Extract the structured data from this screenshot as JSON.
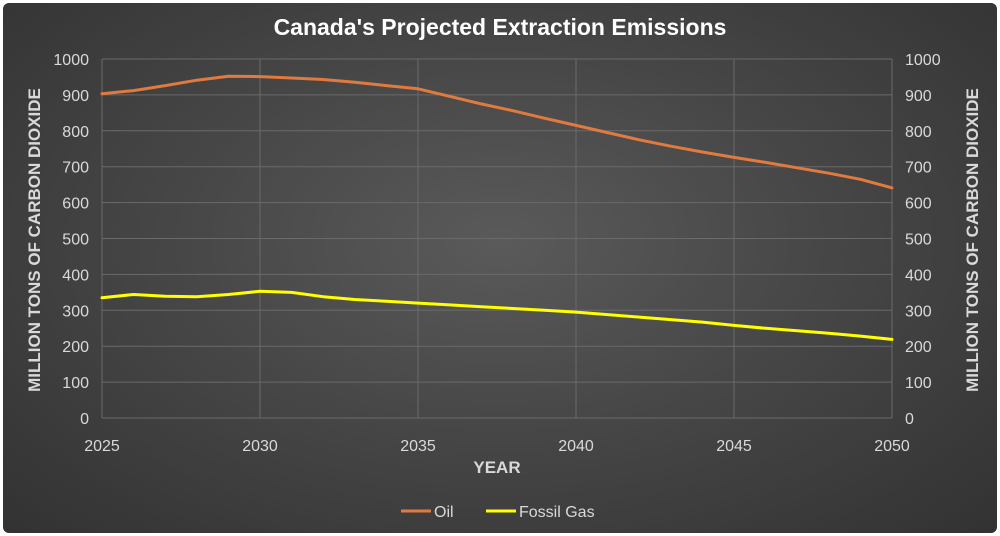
{
  "chart_data": {
    "type": "line",
    "title": "Canada's Projected Extraction Emissions",
    "xlabel": "YEAR",
    "ylabel": "MILLION TONS OF CARBON DIOXIDE",
    "ylabel_right": "MILLION TONS OF CARBON DIOXIDE",
    "xlim": [
      2025,
      2050
    ],
    "ylim": [
      0,
      1000
    ],
    "x_ticks": [
      "2025",
      "2030",
      "2035",
      "2040",
      "2045",
      "2050"
    ],
    "y_ticks": [
      "0",
      "100",
      "200",
      "300",
      "400",
      "500",
      "600",
      "700",
      "800",
      "900",
      "1000"
    ],
    "grid": true,
    "legend_position": "bottom",
    "x": [
      2025,
      2026,
      2027,
      2028,
      2029,
      2030,
      2031,
      2032,
      2033,
      2034,
      2035,
      2036,
      2037,
      2038,
      2039,
      2040,
      2041,
      2042,
      2043,
      2044,
      2045,
      2046,
      2047,
      2048,
      2049,
      2050
    ],
    "series": [
      {
        "name": "Oil",
        "color": "#e07a3f",
        "values": [
          903,
          912,
          926,
          941,
          952,
          951,
          947,
          943,
          935,
          926,
          917,
          896,
          875,
          856,
          835,
          815,
          795,
          775,
          757,
          741,
          726,
          712,
          697,
          682,
          665,
          641
        ]
      },
      {
        "name": "Fossil Gas",
        "color": "#ffff00",
        "values": [
          335,
          344,
          339,
          338,
          344,
          353,
          350,
          338,
          330,
          325,
          320,
          315,
          310,
          305,
          300,
          295,
          288,
          281,
          274,
          267,
          258,
          250,
          243,
          236,
          228,
          219
        ]
      }
    ]
  }
}
